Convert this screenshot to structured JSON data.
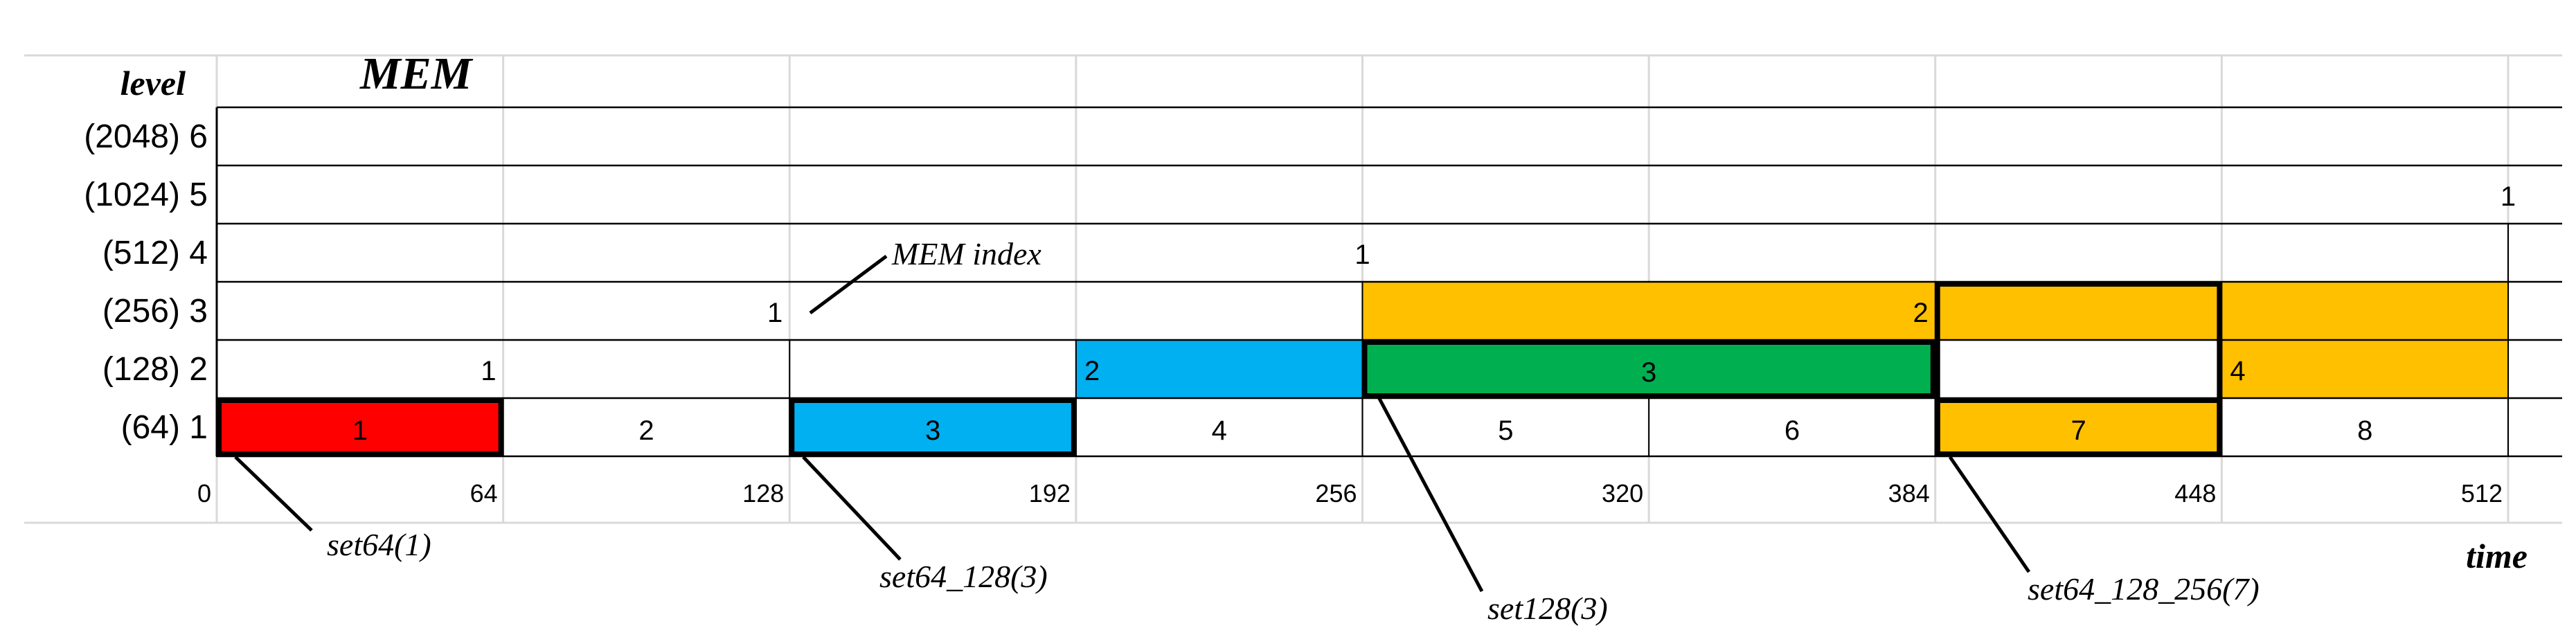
{
  "header": {
    "level_label": "level",
    "title": "MEM",
    "time_label": "time"
  },
  "rows": [
    {
      "label": "(2048) 6"
    },
    {
      "label": "(1024) 5"
    },
    {
      "label": "(512) 4"
    },
    {
      "label": "(256) 3"
    },
    {
      "label": "(128) 2"
    },
    {
      "label": "(64) 1"
    }
  ],
  "time_ticks": [
    "0",
    "64",
    "128",
    "192",
    "256",
    "320",
    "384",
    "448",
    "512"
  ],
  "colors": {
    "red": "#FF0000",
    "blue": "#00B0F0",
    "green": "#00B050",
    "orange": "#FFC000"
  },
  "blocks": [
    {
      "level": 1,
      "start": 0,
      "end": 64,
      "color": "#FF0000",
      "label": "1",
      "bold": true
    },
    {
      "level": 1,
      "start": 64,
      "end": 128,
      "color": "none",
      "label": "2",
      "bold": false
    },
    {
      "level": 1,
      "start": 128,
      "end": 192,
      "color": "#00B0F0",
      "label": "3",
      "bold": true
    },
    {
      "level": 1,
      "start": 192,
      "end": 256,
      "color": "none",
      "label": "4",
      "bold": false
    },
    {
      "level": 1,
      "start": 256,
      "end": 320,
      "color": "none",
      "label": "5",
      "bold": false
    },
    {
      "level": 1,
      "start": 320,
      "end": 384,
      "color": "none",
      "label": "6",
      "bold": false
    },
    {
      "level": 1,
      "start": 384,
      "end": 448,
      "color": "#FFC000",
      "label": "7",
      "bold": true
    },
    {
      "level": 1,
      "start": 448,
      "end": 512,
      "color": "none",
      "label": "8",
      "bold": false
    },
    {
      "level": 2,
      "start": 192,
      "end": 256,
      "color": "#00B0F0",
      "label": "",
      "bold": false
    },
    {
      "level": 2,
      "start": 256,
      "end": 384,
      "color": "#00B050",
      "label": "3",
      "bold": true
    },
    {
      "level": 2,
      "start": 448,
      "end": 512,
      "color": "#FFC000",
      "label": "",
      "bold": false
    },
    {
      "level": 3,
      "start": 256,
      "end": 512,
      "color": "#FFC000",
      "label": "",
      "bold": false
    },
    {
      "level": 1,
      "start": 384,
      "end": 448,
      "color": "none",
      "label": "",
      "bold": true,
      "span_to_level": 3
    }
  ],
  "index_labels": [
    {
      "level": 2,
      "time": 64,
      "text": "1",
      "side": "left"
    },
    {
      "level": 3,
      "time": 128,
      "text": "1",
      "side": "left"
    },
    {
      "level": 4,
      "time": 256,
      "text": "1",
      "side": "center"
    },
    {
      "level": 5,
      "time": 512,
      "text": "1",
      "side": "center"
    },
    {
      "level": 2,
      "time": 192,
      "text": "2",
      "side": "right"
    },
    {
      "level": 3,
      "time": 384,
      "text": "2",
      "side": "left"
    },
    {
      "level": 2,
      "time": 448,
      "text": "4",
      "side": "right"
    }
  ],
  "annotations": [
    {
      "text": "MEM index"
    },
    {
      "text": "set64(1)"
    },
    {
      "text": "set64_128(3)"
    },
    {
      "text": "set128(3)"
    },
    {
      "text": "set64_128_256(7)"
    }
  ]
}
